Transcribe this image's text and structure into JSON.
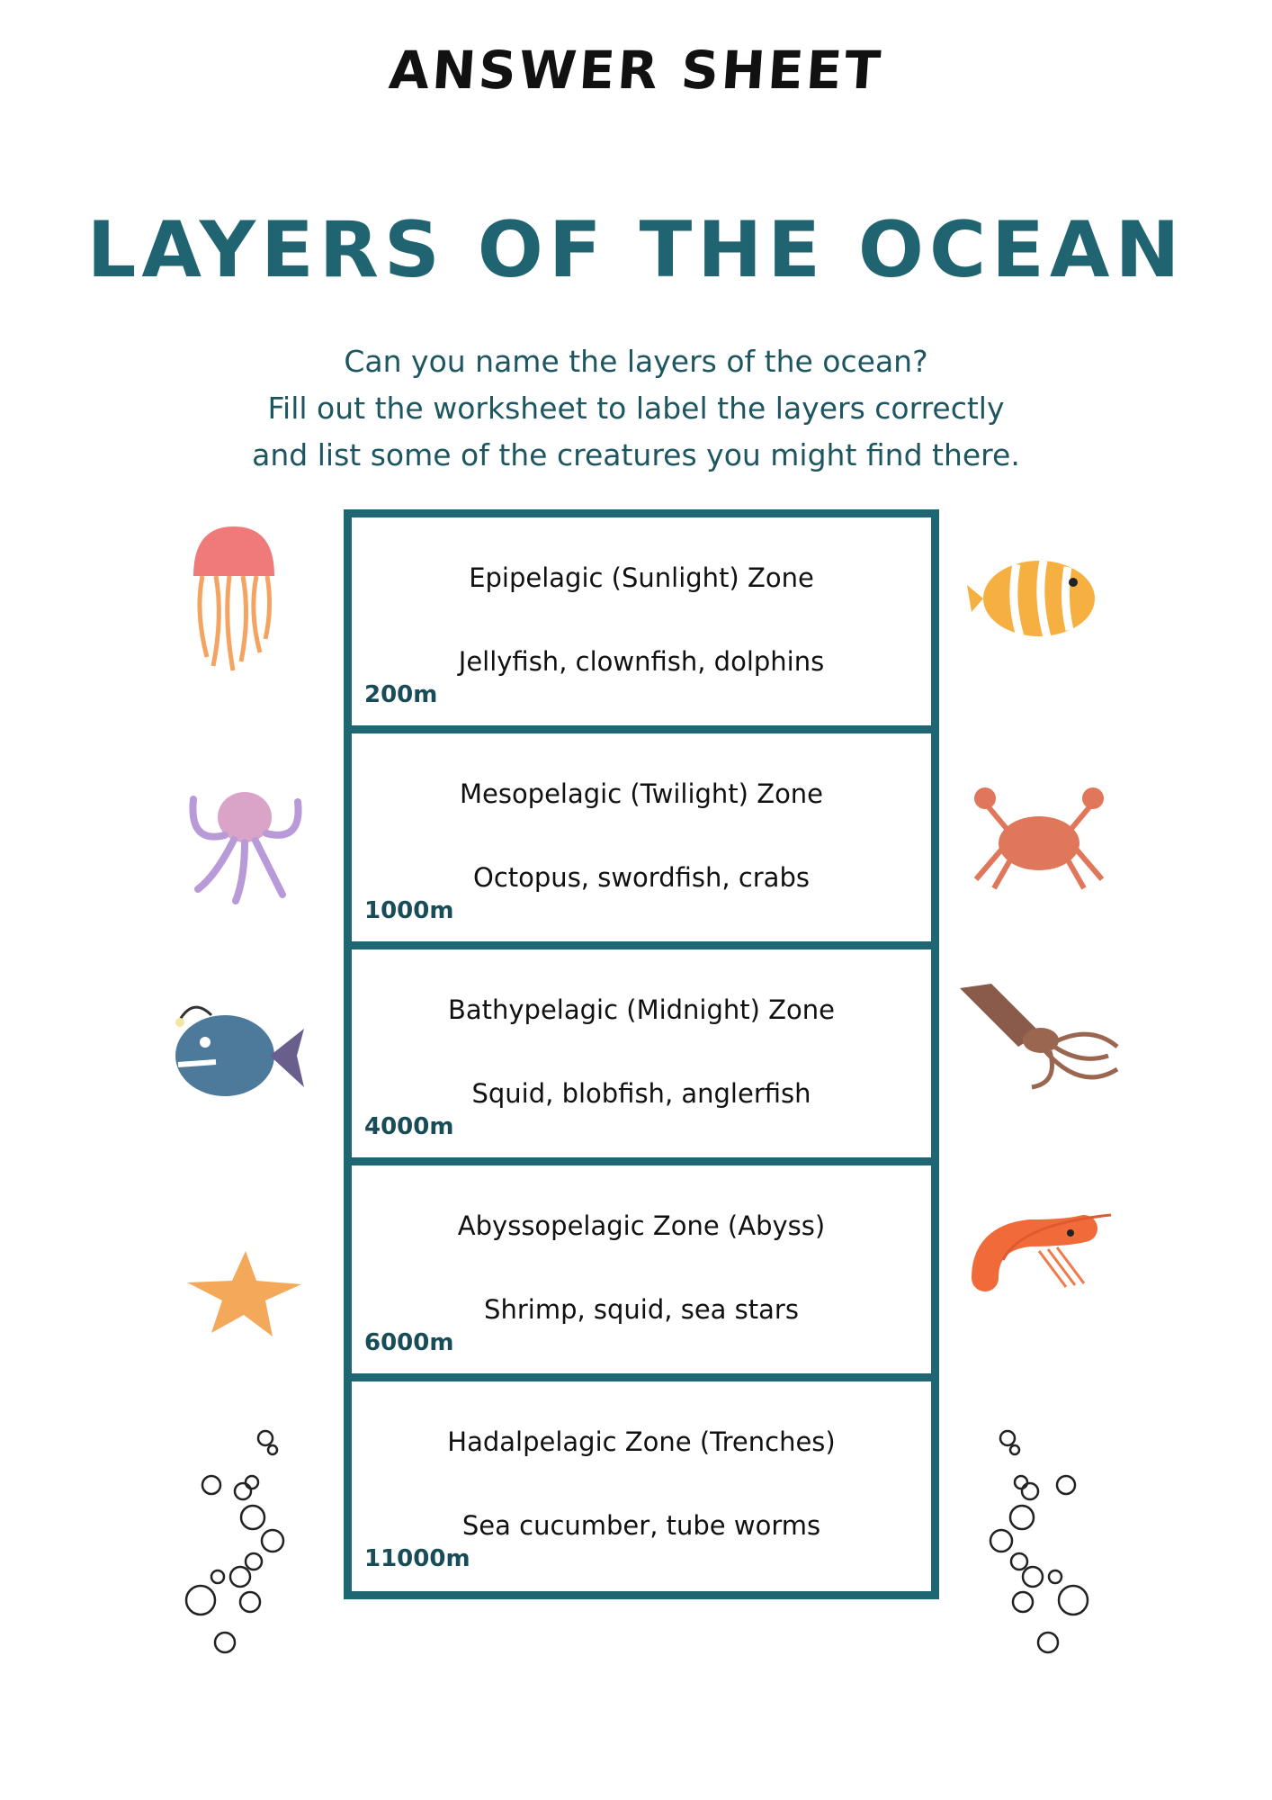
{
  "header": {
    "sheet_title": "ANSWER SHEET",
    "title": "LAYERS OF THE OCEAN"
  },
  "intro": [
    "Can you name the layers of the ocean?",
    "Fill out the worksheet to label the layers correctly",
    "and list some of the creatures you might find there."
  ],
  "zones": [
    {
      "name": "Epipelagic (Sunlight) Zone",
      "creatures": "Jellyfish, clownfish, dolphins",
      "depth": "200m"
    },
    {
      "name": "Mesopelagic (Twilight) Zone",
      "creatures": "Octopus, swordfish, crabs",
      "depth": "1000m"
    },
    {
      "name": "Bathypelagic (Midnight) Zone",
      "creatures": "Squid, blobfish, anglerfish",
      "depth": "4000m"
    },
    {
      "name": "Abyssopelagic Zone (Abyss)",
      "creatures": "Shrimp, squid, sea stars",
      "depth": "6000m"
    },
    {
      "name": "Hadalpelagic Zone (Trenches)",
      "creatures": "Sea cucumber, tube worms",
      "depth": "11000m"
    }
  ],
  "colors": {
    "accent": "#1f6673",
    "title": "#1f6470"
  },
  "illustrations": [
    "jellyfish",
    "clownfish",
    "octopus",
    "crab",
    "anglerfish",
    "squid",
    "starfish",
    "shrimp",
    "bubbles",
    "bubbles"
  ]
}
